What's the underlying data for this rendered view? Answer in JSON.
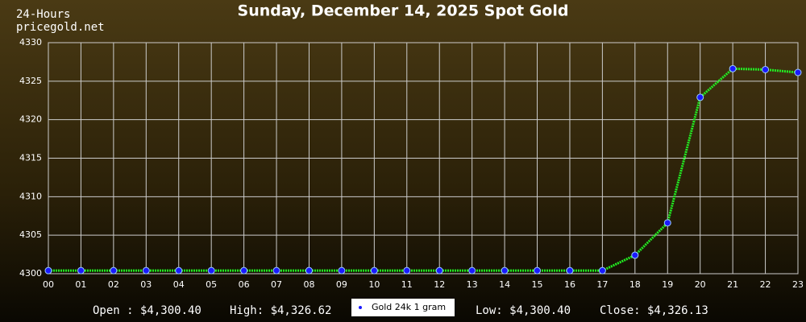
{
  "chart_data": {
    "type": "line",
    "title": "Sunday, December 14, 2025 Spot Gold",
    "period": "24-Hours",
    "source": "pricegold.net",
    "categories": [
      "00",
      "01",
      "02",
      "03",
      "04",
      "05",
      "06",
      "07",
      "08",
      "09",
      "10",
      "11",
      "12",
      "13",
      "14",
      "15",
      "16",
      "17",
      "18",
      "19",
      "20",
      "21",
      "22",
      "23"
    ],
    "series": [
      {
        "name": "Gold 24k 1 gram",
        "color": "#22ee22",
        "marker_color": "#1a1aff",
        "values": [
          4300.4,
          4300.4,
          4300.4,
          4300.4,
          4300.4,
          4300.4,
          4300.4,
          4300.4,
          4300.4,
          4300.4,
          4300.4,
          4300.4,
          4300.4,
          4300.4,
          4300.4,
          4300.4,
          4300.4,
          4300.4,
          4302.4,
          4306.6,
          4322.9,
          4326.62,
          4326.5,
          4326.13
        ]
      }
    ],
    "ylim": [
      4300,
      4330
    ],
    "yticks": [
      4300,
      4305,
      4310,
      4315,
      4320,
      4325,
      4330
    ],
    "grid": true,
    "stats": [
      "Open : $4,300.40",
      "High: $4,326.62",
      "Low: $4,300.40",
      "Close: $4,326.13"
    ]
  }
}
